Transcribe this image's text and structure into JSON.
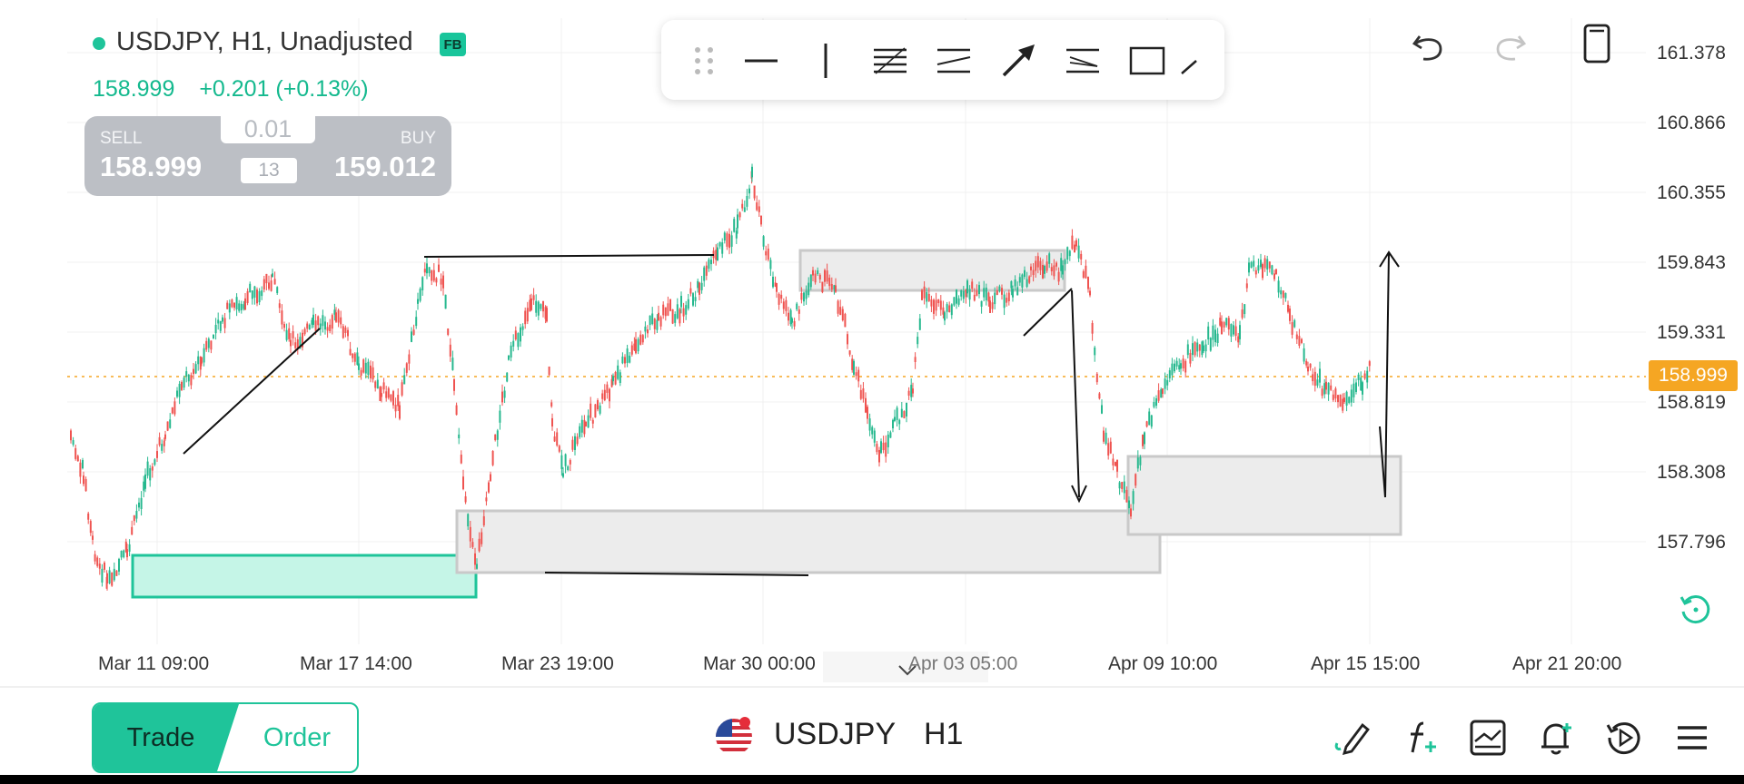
{
  "header": {
    "symbol_title": "USDJPY, H1, Unadjusted",
    "badge": "FB",
    "price": "158.999",
    "change": "+0.201 (+0.13%)"
  },
  "trade_widget": {
    "sell_label": "SELL",
    "sell_price": "158.999",
    "buy_label": "BUY",
    "buy_price": "159.012",
    "lot": "0.01",
    "spread": "13"
  },
  "drawing_toolbar": {
    "tools": [
      "drag-handle-icon",
      "horizontal-line-icon",
      "vertical-line-icon",
      "fib-retracement-icon",
      "parallel-channel-icon",
      "arrow-icon",
      "fib-fan-icon",
      "rectangle-icon",
      "trend-line-icon"
    ]
  },
  "top_actions": [
    "undo-icon",
    "redo-icon",
    "phone-icon"
  ],
  "price_axis": {
    "labels": [
      "161.378",
      "160.866",
      "160.355",
      "159.843",
      "159.331",
      "158.819",
      "158.308",
      "157.796"
    ],
    "current_price": "158.999",
    "current_price_color": "#f5a623"
  },
  "time_axis": {
    "labels": [
      "Mar 11 09:00",
      "Mar 17 14:00",
      "Mar 23 19:00",
      "Mar 30 00:00",
      "Apr 03 05:00",
      "Apr 09 10:00",
      "Apr 15 15:00",
      "Apr 21 20:00"
    ]
  },
  "colors": {
    "accent": "#1fc49a",
    "up_candle": "#26b88e",
    "down_candle": "#ef5350"
  },
  "bottom_bar": {
    "trade_label": "Trade",
    "order_label": "Order",
    "symbol": "USDJPY",
    "timeframe": "H1",
    "icons": [
      "drawing-pencil-icon",
      "indicator-fx-icon",
      "template-icon",
      "alert-bell-icon",
      "replay-icon",
      "menu-icon"
    ]
  }
}
